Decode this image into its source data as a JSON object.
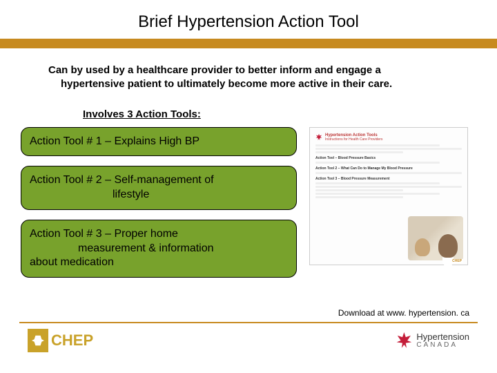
{
  "title": "Brief Hypertension Action Tool",
  "intro_line1": "Can by used by a healthcare provider to better inform and engage a",
  "intro_line2": "hypertensive patient to ultimately become more active in their care.",
  "subheading": "Involves 3 Action Tools:",
  "tools": [
    {
      "label": "Action Tool # 1 – Explains High BP"
    },
    {
      "label_l1": "Action Tool # 2 – Self-management of",
      "label_l2": "lifestyle"
    },
    {
      "label_l1": "Action Tool # 3 – Proper home",
      "label_l2": "measurement  & information",
      "label_l3": "about     medication"
    }
  ],
  "download_text": "Download at www. hypertension. ca",
  "footer": {
    "chep_label": "CHEP",
    "hc_label_l1": "Hypertension",
    "hc_label_l2": "CANADA"
  },
  "preview": {
    "brand_l1": "Hypertension Action Tools",
    "brand_l2": "Instructions for Health Care Providers",
    "h1": "Action Tool – Blood Pressure Basics",
    "h2": "Action Tool 2 – What Can Do to Manage My Blood Pressure",
    "h3": "Action Tool 3 – Blood Pressure Measurement"
  },
  "colors": {
    "accent_bar": "#c78a1f",
    "tool_fill": "#78a22c",
    "maple": "#c41e3a",
    "chep_gold": "#c9a22a"
  }
}
